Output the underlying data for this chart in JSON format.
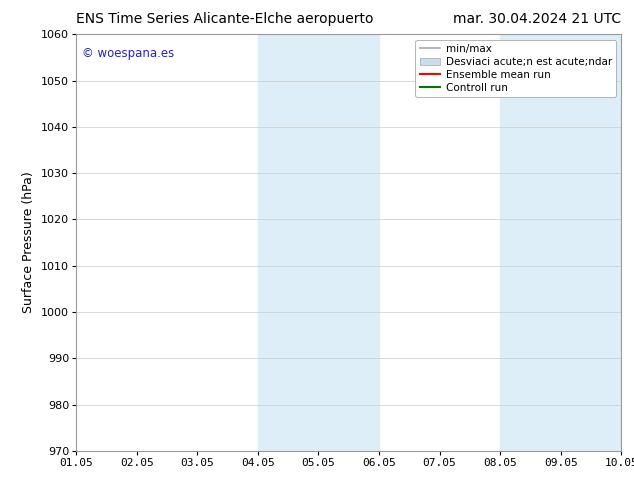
{
  "title_left": "ENS Time Series Alicante-Elche aeropuerto",
  "title_right": "mar. 30.04.2024 21 UTC",
  "ylabel": "Surface Pressure (hPa)",
  "ylim": [
    970,
    1060
  ],
  "yticks": [
    970,
    980,
    990,
    1000,
    1010,
    1020,
    1030,
    1040,
    1050,
    1060
  ],
  "xtick_labels": [
    "01.05",
    "02.05",
    "03.05",
    "04.05",
    "05.05",
    "06.05",
    "07.05",
    "08.05",
    "09.05",
    "10.05"
  ],
  "xtick_positions": [
    0,
    1,
    2,
    3,
    4,
    5,
    6,
    7,
    8,
    9
  ],
  "xlim": [
    0,
    9
  ],
  "watermark": "© woespana.es",
  "watermark_color": "#2222cc",
  "bg_color": "#ffffff",
  "plot_bg_color": "#ffffff",
  "shaded_regions": [
    {
      "x_start": 3,
      "x_end": 4,
      "color": "#ddeef8"
    },
    {
      "x_start": 4,
      "x_end": 5,
      "color": "#ddeef8"
    },
    {
      "x_start": 7,
      "x_end": 8,
      "color": "#ddeef8"
    },
    {
      "x_start": 8,
      "x_end": 9,
      "color": "#ddeef8"
    }
  ],
  "legend_items": [
    {
      "label": "min/max",
      "color": "#aaaaaa",
      "lw": 1.2
    },
    {
      "label": "Desviaci acute;n est acute;ndar",
      "color": "#ccdded",
      "patch": true
    },
    {
      "label": "Ensemble mean run",
      "color": "#ff0000",
      "lw": 1.5
    },
    {
      "label": "Controll run",
      "color": "#007700",
      "lw": 1.5
    }
  ],
  "title_fontsize": 10,
  "axis_label_fontsize": 9,
  "tick_fontsize": 8,
  "legend_fontsize": 7.5
}
